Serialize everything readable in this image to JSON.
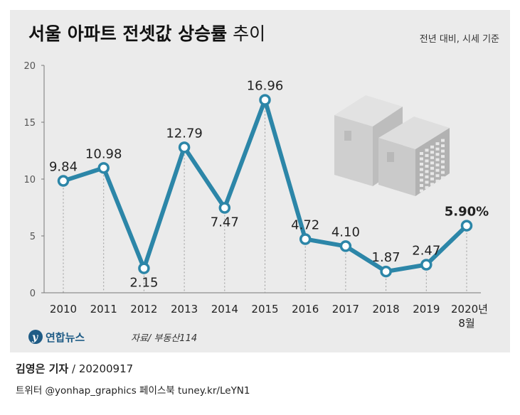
{
  "title": {
    "main": "서울 아파트 전셋값 상승률",
    "suffix": "추이"
  },
  "subtitle": "전년 대비, 시세 기준",
  "logo": {
    "text": "연합뉴스"
  },
  "source": "자료/ 부동산114",
  "credit": {
    "name": "김영은 기자",
    "rest": " / 20200917"
  },
  "social": "트위터 @yonhap_graphics  페이스북 tuney.kr/LeYN1",
  "colors": {
    "line": "#2c86a8",
    "background": "#ebebeb",
    "highlight": "#1f5c86"
  },
  "illustration": "apartment-buildings-icon",
  "chart_data": {
    "type": "line",
    "categories": [
      "2010",
      "2011",
      "2012",
      "2013",
      "2014",
      "2015",
      "2016",
      "2017",
      "2018",
      "2019",
      "2020년 8월"
    ],
    "values": [
      9.84,
      10.98,
      2.15,
      12.79,
      7.47,
      16.96,
      4.72,
      4.1,
      1.87,
      2.47,
      5.9
    ],
    "labels": [
      "9.84",
      "10.98",
      "2.15",
      "12.79",
      "7.47",
      "16.96",
      "4.72",
      "4.10",
      "1.87",
      "2.47",
      "5.90%"
    ],
    "yticks": [
      "0",
      "5",
      "10",
      "15",
      "20"
    ],
    "ylim": [
      0,
      20
    ],
    "grid": false
  }
}
